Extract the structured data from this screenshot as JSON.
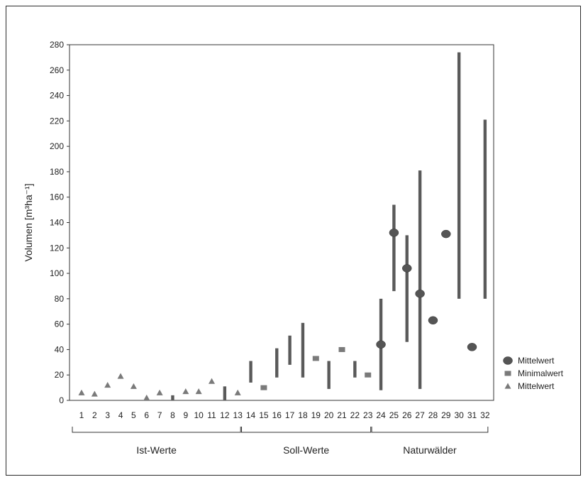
{
  "chart_data": {
    "type": "scatter",
    "title": "",
    "ylabel": "Volumen [m³ha⁻¹]",
    "xlabel": "",
    "ylim": [
      0,
      280
    ],
    "yticks": [
      0,
      20,
      40,
      60,
      80,
      100,
      120,
      140,
      160,
      180,
      200,
      220,
      240,
      260,
      280
    ],
    "categories": [
      "1",
      "2",
      "3",
      "4",
      "5",
      "6",
      "7",
      "8",
      "9",
      "10",
      "11",
      "12",
      "13",
      "14",
      "15",
      "16",
      "17",
      "18",
      "19",
      "20",
      "21",
      "22",
      "23",
      "24",
      "25",
      "26",
      "27",
      "28",
      "29",
      "30",
      "31",
      "32"
    ],
    "groups": [
      {
        "label": "Ist-Werte",
        "from": 1,
        "to": 13
      },
      {
        "label": "Soll-Werte",
        "from": 14,
        "to": 23
      },
      {
        "label": "Naturwälder",
        "from": 24,
        "to": 32
      }
    ],
    "legend": {
      "position": "right",
      "entries": [
        {
          "label": "Mittelwert",
          "marker": "ellipse"
        },
        {
          "label": "Minimalwert",
          "marker": "square"
        },
        {
          "label": "Mittelwert",
          "marker": "triangle"
        }
      ]
    },
    "colors": {
      "ellipse": "#555555",
      "square": "#7a7a7a",
      "triangle": "#7a7a7a",
      "range": "#5a5a5a"
    },
    "ranges": [
      {
        "x": 8,
        "min": 0,
        "max": 4
      },
      {
        "x": 12,
        "min": 0,
        "max": 11
      },
      {
        "x": 14,
        "min": 14,
        "max": 31
      },
      {
        "x": 16,
        "min": 18,
        "max": 41
      },
      {
        "x": 17,
        "min": 28,
        "max": 51
      },
      {
        "x": 18,
        "min": 18,
        "max": 61
      },
      {
        "x": 20,
        "min": 9,
        "max": 31
      },
      {
        "x": 22,
        "min": 18,
        "max": 31
      },
      {
        "x": 24,
        "min": 8,
        "max": 80
      },
      {
        "x": 25,
        "min": 86,
        "max": 154
      },
      {
        "x": 26,
        "min": 46,
        "max": 130
      },
      {
        "x": 27,
        "min": 9,
        "max": 181
      },
      {
        "x": 30,
        "min": 80,
        "max": 274
      },
      {
        "x": 32,
        "min": 80,
        "max": 221
      }
    ],
    "series": [
      {
        "name": "Mittelwert",
        "marker": "triangle",
        "points": [
          {
            "x": 1,
            "y": 6
          },
          {
            "x": 2,
            "y": 5
          },
          {
            "x": 3,
            "y": 12
          },
          {
            "x": 4,
            "y": 19
          },
          {
            "x": 5,
            "y": 11
          },
          {
            "x": 6,
            "y": 2
          },
          {
            "x": 7,
            "y": 6
          },
          {
            "x": 9,
            "y": 7
          },
          {
            "x": 10,
            "y": 7
          },
          {
            "x": 11,
            "y": 15
          },
          {
            "x": 13,
            "y": 6
          }
        ]
      },
      {
        "name": "Minimalwert",
        "marker": "square",
        "points": [
          {
            "x": 15,
            "y": 10
          },
          {
            "x": 19,
            "y": 33
          },
          {
            "x": 21,
            "y": 40
          },
          {
            "x": 23,
            "y": 20
          }
        ]
      },
      {
        "name": "Mittelwert",
        "marker": "ellipse",
        "points": [
          {
            "x": 24,
            "y": 44
          },
          {
            "x": 25,
            "y": 132
          },
          {
            "x": 26,
            "y": 104
          },
          {
            "x": 27,
            "y": 84
          },
          {
            "x": 28,
            "y": 63
          },
          {
            "x": 29,
            "y": 131
          },
          {
            "x": 31,
            "y": 42
          }
        ]
      }
    ]
  }
}
